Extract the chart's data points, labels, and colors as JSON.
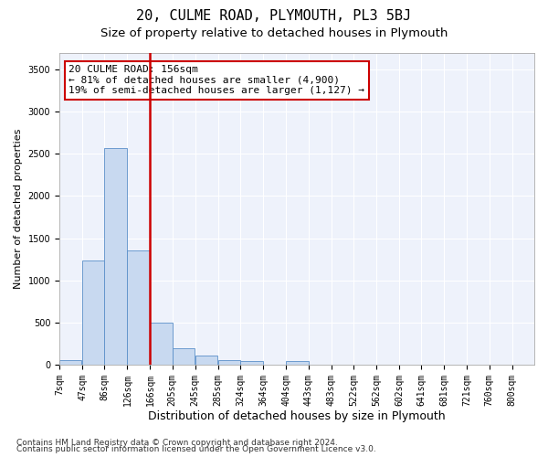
{
  "title": "20, CULME ROAD, PLYMOUTH, PL3 5BJ",
  "subtitle": "Size of property relative to detached houses in Plymouth",
  "xlabel": "Distribution of detached houses by size in Plymouth",
  "ylabel": "Number of detached properties",
  "property_label": "20 CULME ROAD: 156sqm",
  "annotation_line1": "← 81% of detached houses are smaller (4,900)",
  "annotation_line2": "19% of semi-detached houses are larger (1,127) →",
  "bar_color": "#c8d9f0",
  "bar_edge_color": "#5b8fc9",
  "vline_color": "#cc0000",
  "categories": [
    "7sqm",
    "47sqm",
    "86sqm",
    "126sqm",
    "166sqm",
    "205sqm",
    "245sqm",
    "285sqm",
    "324sqm",
    "364sqm",
    "404sqm",
    "443sqm",
    "483sqm",
    "522sqm",
    "562sqm",
    "602sqm",
    "641sqm",
    "681sqm",
    "721sqm",
    "760sqm",
    "800sqm"
  ],
  "bin_edges": [
    7,
    47,
    86,
    126,
    166,
    205,
    245,
    285,
    324,
    364,
    404,
    443,
    483,
    522,
    562,
    602,
    641,
    681,
    721,
    760,
    800
  ],
  "bin_width": 39,
  "values": [
    50,
    1230,
    2570,
    1350,
    500,
    200,
    105,
    50,
    45,
    0,
    40,
    0,
    0,
    0,
    0,
    0,
    0,
    0,
    0,
    0,
    0
  ],
  "ylim": [
    0,
    3700
  ],
  "yticks": [
    0,
    500,
    1000,
    1500,
    2000,
    2500,
    3000,
    3500
  ],
  "footer_line1": "Contains HM Land Registry data © Crown copyright and database right 2024.",
  "footer_line2": "Contains public sector information licensed under the Open Government Licence v3.0.",
  "background_color": "#eef2fb",
  "grid_color": "#ffffff",
  "title_fontsize": 11,
  "subtitle_fontsize": 9.5,
  "xlabel_fontsize": 9,
  "ylabel_fontsize": 8,
  "tick_fontsize": 7,
  "footer_fontsize": 6.5,
  "annotation_fontsize": 8
}
